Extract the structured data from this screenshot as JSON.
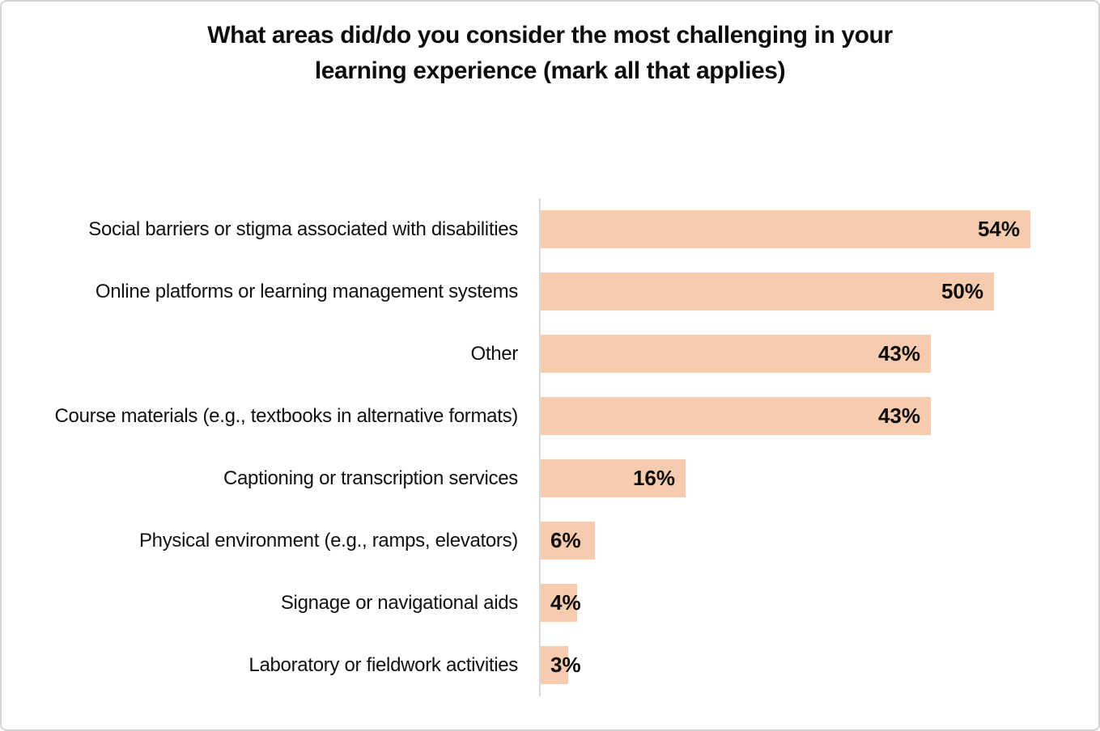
{
  "page": {
    "background_color": "#ffffff",
    "border_color": "#d3d3d3"
  },
  "chart_data": {
    "type": "bar",
    "orientation": "horizontal",
    "title": "What areas did/do you consider the most challenging in your learning experience (mark all that applies)",
    "title_lines": [
      "What areas did/do you consider the most challenging in your",
      "learning experience (mark all that applies)"
    ],
    "categories": [
      "Social barriers or stigma associated with disabilities",
      "Online platforms or learning management systems",
      "Other",
      "Course materials (e.g., textbooks in alternative formats)",
      "Captioning or transcription services",
      "Physical environment (e.g., ramps, elevators)",
      "Signage or navigational aids",
      "Laboratory or fieldwork activities"
    ],
    "values": [
      54,
      50,
      43,
      43,
      16,
      6,
      4,
      3
    ],
    "value_suffix": "%",
    "data_labels": [
      "54%",
      "50%",
      "43%",
      "43%",
      "16%",
      "6%",
      "4%",
      "3%"
    ],
    "xlabel": "",
    "ylabel": "",
    "xlim": [
      0,
      57.6
    ],
    "grid": false,
    "legend": false,
    "bar_color": "#f7cbad",
    "axis_line_color": "#d9d9d9",
    "text_color": "#0d0d0d",
    "data_label_position": "inside-end"
  }
}
